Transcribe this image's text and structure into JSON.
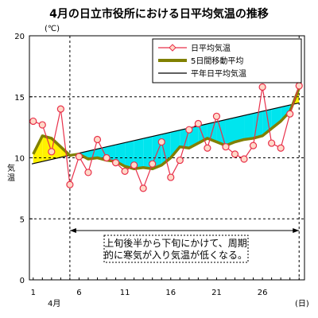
{
  "chart_data": {
    "type": "line",
    "title": "4月の日立市役所における日平均気温の推移",
    "yunit": "(℃)",
    "ylabel": "気温",
    "xunit": "(日)",
    "xlabel_month": "4月",
    "ylim": [
      0,
      20
    ],
    "yticks": [
      "0",
      "5",
      "10",
      "15",
      "20"
    ],
    "xlim": [
      1,
      30
    ],
    "xticks": [
      "1",
      "6",
      "11",
      "16",
      "21",
      "26"
    ],
    "xtick_values": [
      1,
      6,
      11,
      16,
      21,
      26
    ],
    "grid_y": [
      5,
      10,
      15
    ],
    "legend": {
      "placement": "top-right",
      "items": [
        "日平均気温",
        "5日間移動平均",
        "平年日平均気温"
      ]
    },
    "series": [
      {
        "name": "日平均気温",
        "color": "#e8304a",
        "marker_fill": "#ffd8c8",
        "x": [
          1,
          2,
          3,
          4,
          5,
          6,
          7,
          8,
          9,
          10,
          11,
          12,
          13,
          14,
          15,
          16,
          17,
          18,
          19,
          20,
          21,
          22,
          23,
          24,
          25,
          26,
          27,
          28,
          29,
          30
        ],
        "values": [
          13.0,
          12.7,
          10.5,
          14.0,
          7.8,
          10.1,
          8.8,
          11.5,
          10.0,
          9.6,
          8.9,
          9.4,
          7.5,
          9.5,
          11.3,
          8.4,
          9.8,
          12.3,
          12.8,
          10.8,
          13.4,
          10.9,
          10.3,
          9.9,
          11.0,
          15.8,
          11.2,
          10.8,
          13.6,
          15.9
        ]
      },
      {
        "name": "5日間移動平均",
        "color": "#808000",
        "x": [
          1,
          2,
          3,
          4,
          5,
          6,
          7,
          8,
          9,
          10,
          11,
          12,
          13,
          14,
          15,
          16,
          17,
          18,
          19,
          20,
          21,
          22,
          23,
          24,
          25,
          26,
          27,
          28,
          29,
          30
        ],
        "values": [
          10.3,
          11.8,
          11.6,
          10.9,
          10.2,
          10.3,
          9.9,
          10.0,
          9.8,
          9.7,
          9.3,
          9.1,
          9.2,
          9.1,
          9.4,
          10.0,
          10.9,
          10.8,
          11.2,
          11.6,
          11.3,
          11.0,
          11.3,
          11.5,
          11.6,
          11.8,
          12.4,
          13.0,
          13.8,
          15.7
        ]
      },
      {
        "name": "平年日平均気温",
        "color": "#000000",
        "x": [
          1,
          30
        ],
        "values": [
          9.5,
          14.5
        ]
      }
    ],
    "fill_above_normal_color": "#fff200",
    "fill_below_normal_color": "#00e5ee",
    "annotation": {
      "x_range": [
        5,
        30
      ],
      "lines": [
        "上旬後半から下旬にかけて、周期",
        "的に寒気が入り気温が低くなる。"
      ]
    }
  }
}
